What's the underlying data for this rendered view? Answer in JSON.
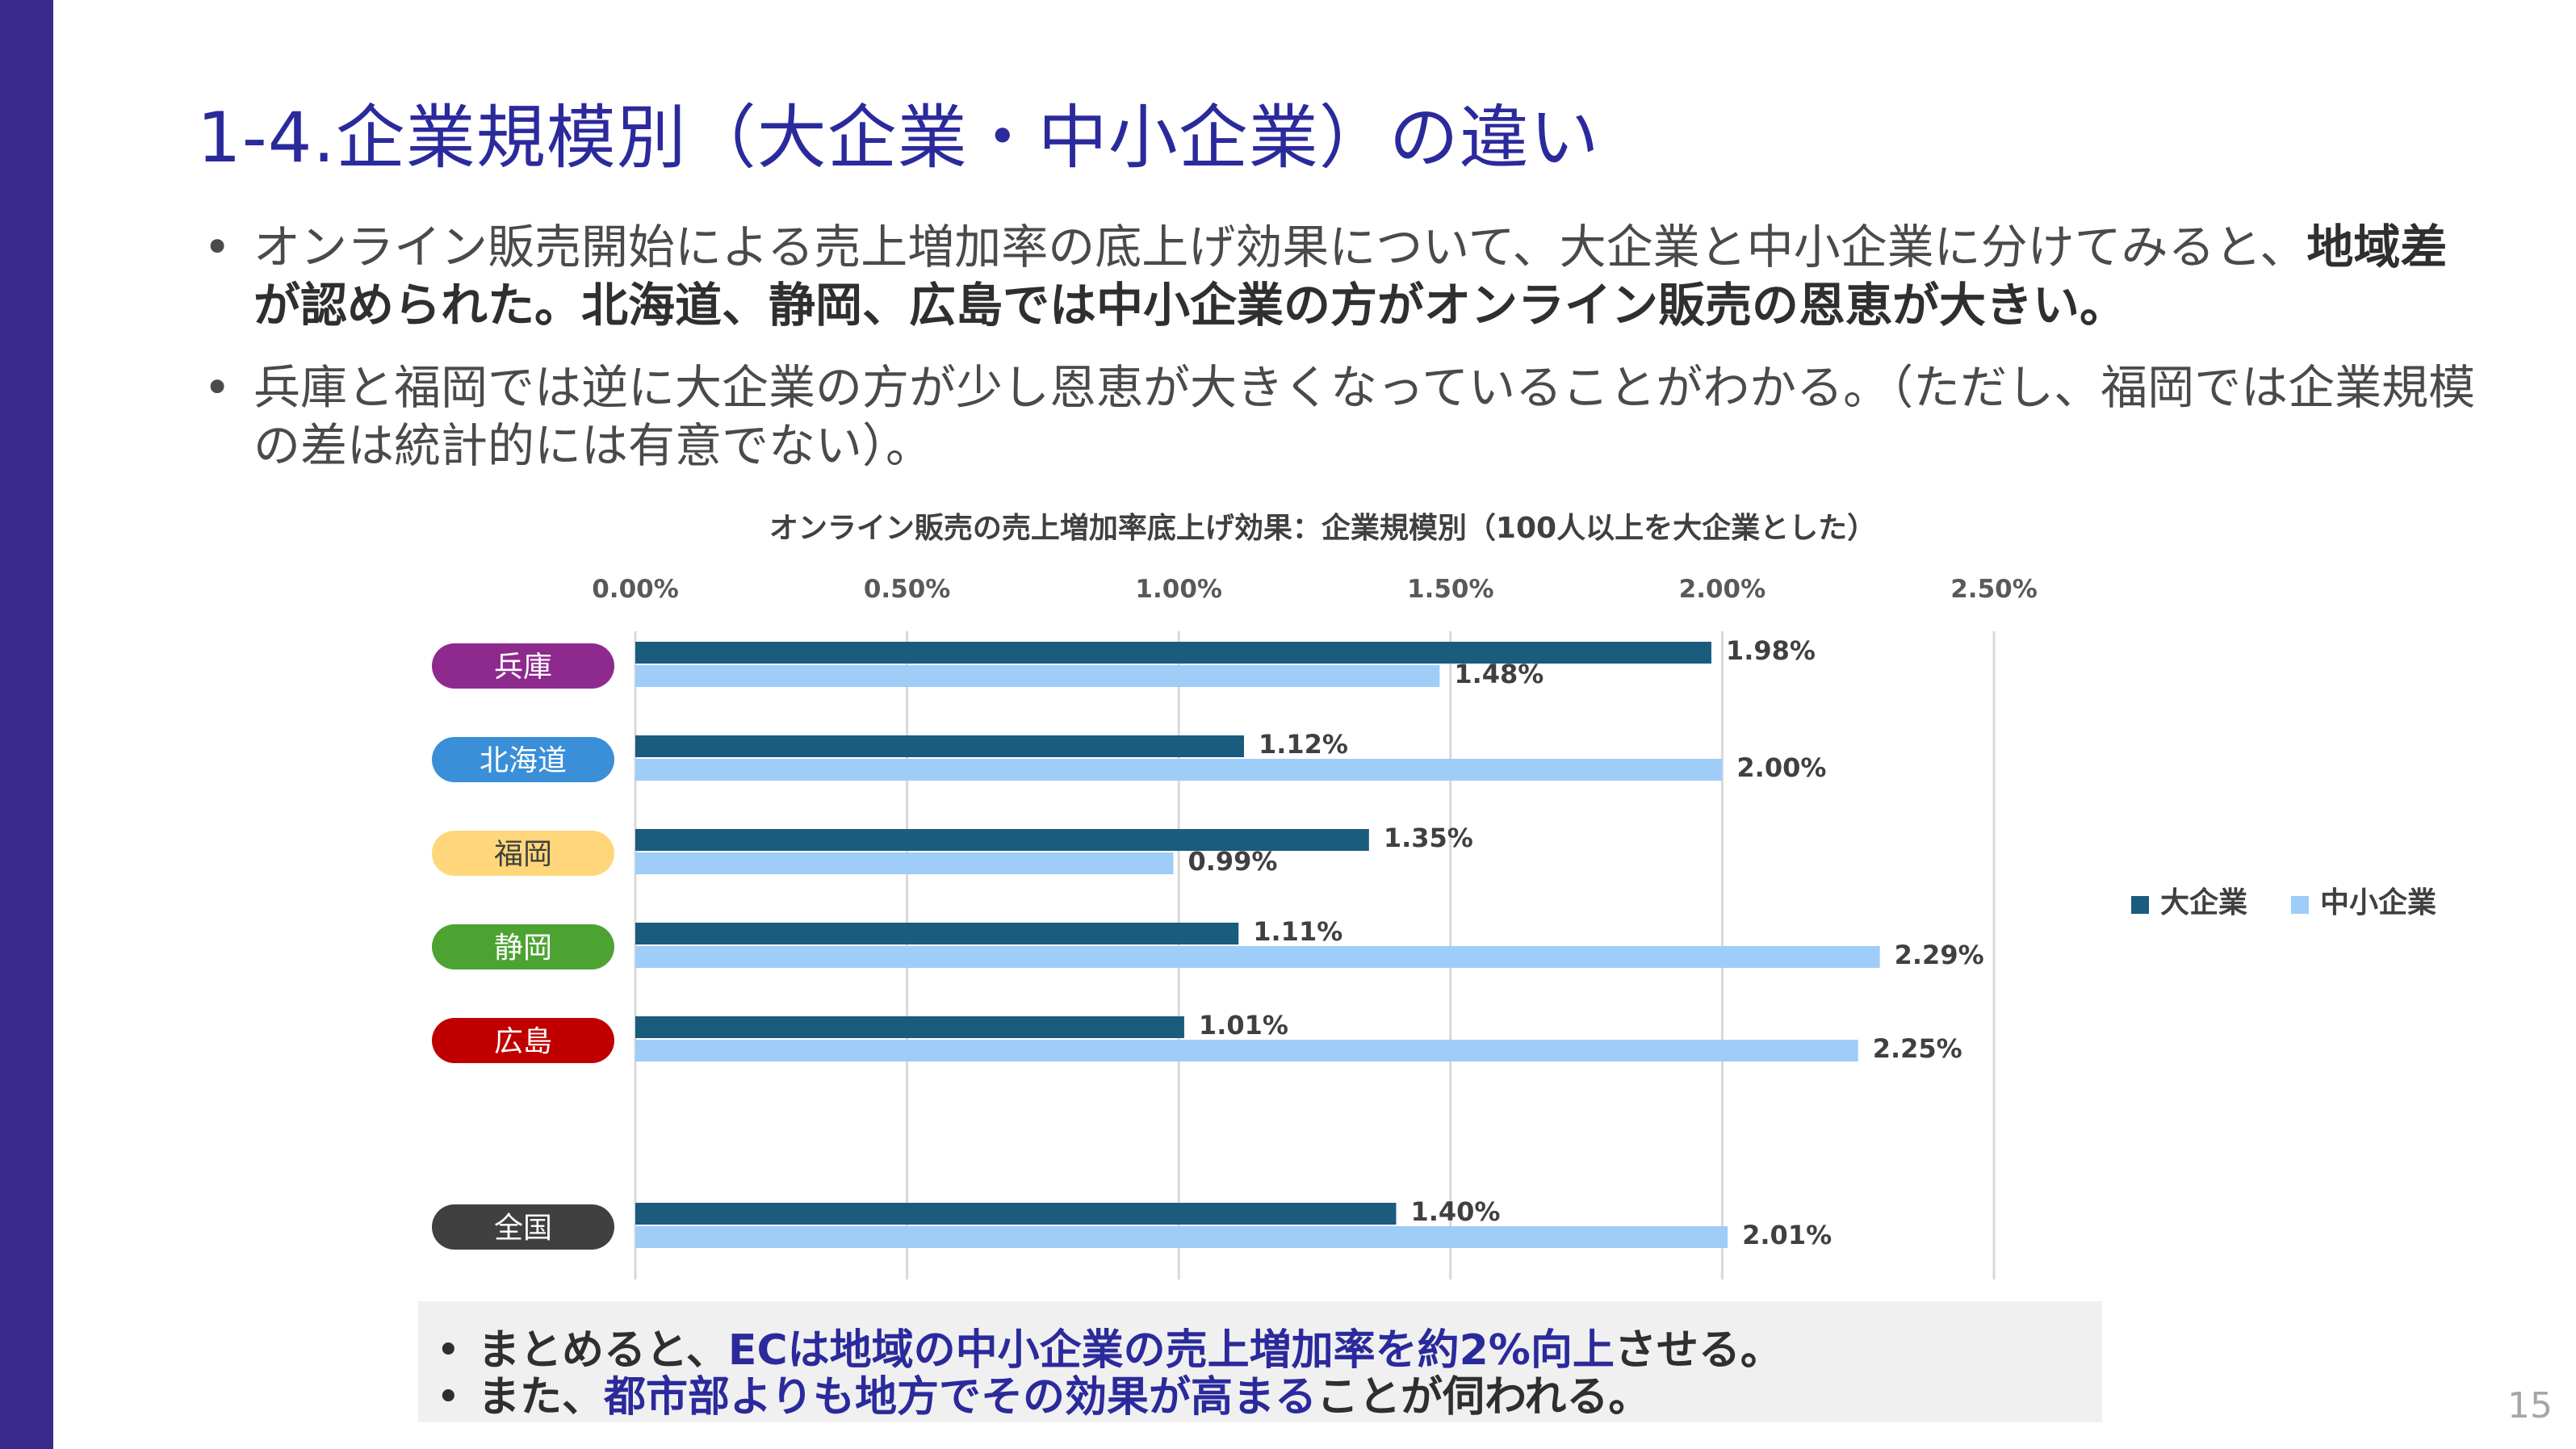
{
  "slide": {
    "title": "1-4.企業規模別（大企業・中小企業）の違い",
    "bullets": [
      {
        "normal": "オンライン販売開始による売上増加率の底上げ効果について、大企業と中小企業に分けてみると、",
        "bold": "地域差が認められた。北海道、静岡、広島では中小企業の方がオンライン販売の恩恵が大きい。"
      },
      {
        "normal": "兵庫と福岡では逆に大企業の方が少し恩恵が大きくなっていることがわかる。（ただし、福岡では企業規模の差は統計的には有意でない）。",
        "bold": ""
      }
    ],
    "summary": [
      {
        "pre": "まとめると、",
        "highlight": "ECは地域の中小企業の売上増加率を約2%向上",
        "post": "させる。"
      },
      {
        "pre": "また、",
        "highlight": "都市部よりも地方でその効果が高まる",
        "post": "ことが伺われる。"
      }
    ],
    "page_number": "15",
    "bullet_symbol": "•"
  },
  "colors": {
    "title": "#2b2a9c",
    "left_bar": "#3a2a8c",
    "large": "#1a5b7e",
    "sme": "#9ecdf8",
    "gridline": "#d9d9d9",
    "summary_bg": "#f0f0f0"
  },
  "chart_data": {
    "type": "bar",
    "orientation": "horizontal",
    "title": "オンライン販売の売上増加率底上げ効果：企業規模別（100人以上を大企業とした）",
    "xlim": [
      0,
      2.5
    ],
    "x_ticks": [
      "0.00%",
      "0.50%",
      "1.00%",
      "1.50%",
      "2.00%",
      "2.50%"
    ],
    "x_axis_position": "top",
    "grid": true,
    "legend_position": "right",
    "categories": [
      {
        "label": "兵庫",
        "color": "#8e2a8e"
      },
      {
        "label": "北海道",
        "color": "#3a8fd8"
      },
      {
        "label": "福岡",
        "color": "#ffd77a"
      },
      {
        "label": "静岡",
        "color": "#4da332"
      },
      {
        "label": "広島",
        "color": "#c00000"
      },
      {
        "label": "全国",
        "color": "#404040"
      }
    ],
    "series": [
      {
        "name": "大企業",
        "color": "#1a5b7e",
        "values": [
          1.98,
          1.12,
          1.35,
          1.11,
          1.01,
          1.4
        ],
        "labels": [
          "1.98%",
          "1.12%",
          "1.35%",
          "1.11%",
          "1.01%",
          "1.40%"
        ]
      },
      {
        "name": "中小企業",
        "color": "#9ecdf8",
        "values": [
          1.48,
          2.0,
          0.99,
          2.29,
          2.25,
          2.01
        ],
        "labels": [
          "1.48%",
          "2.00%",
          "0.99%",
          "2.29%",
          "2.25%",
          "2.01%"
        ]
      }
    ]
  }
}
